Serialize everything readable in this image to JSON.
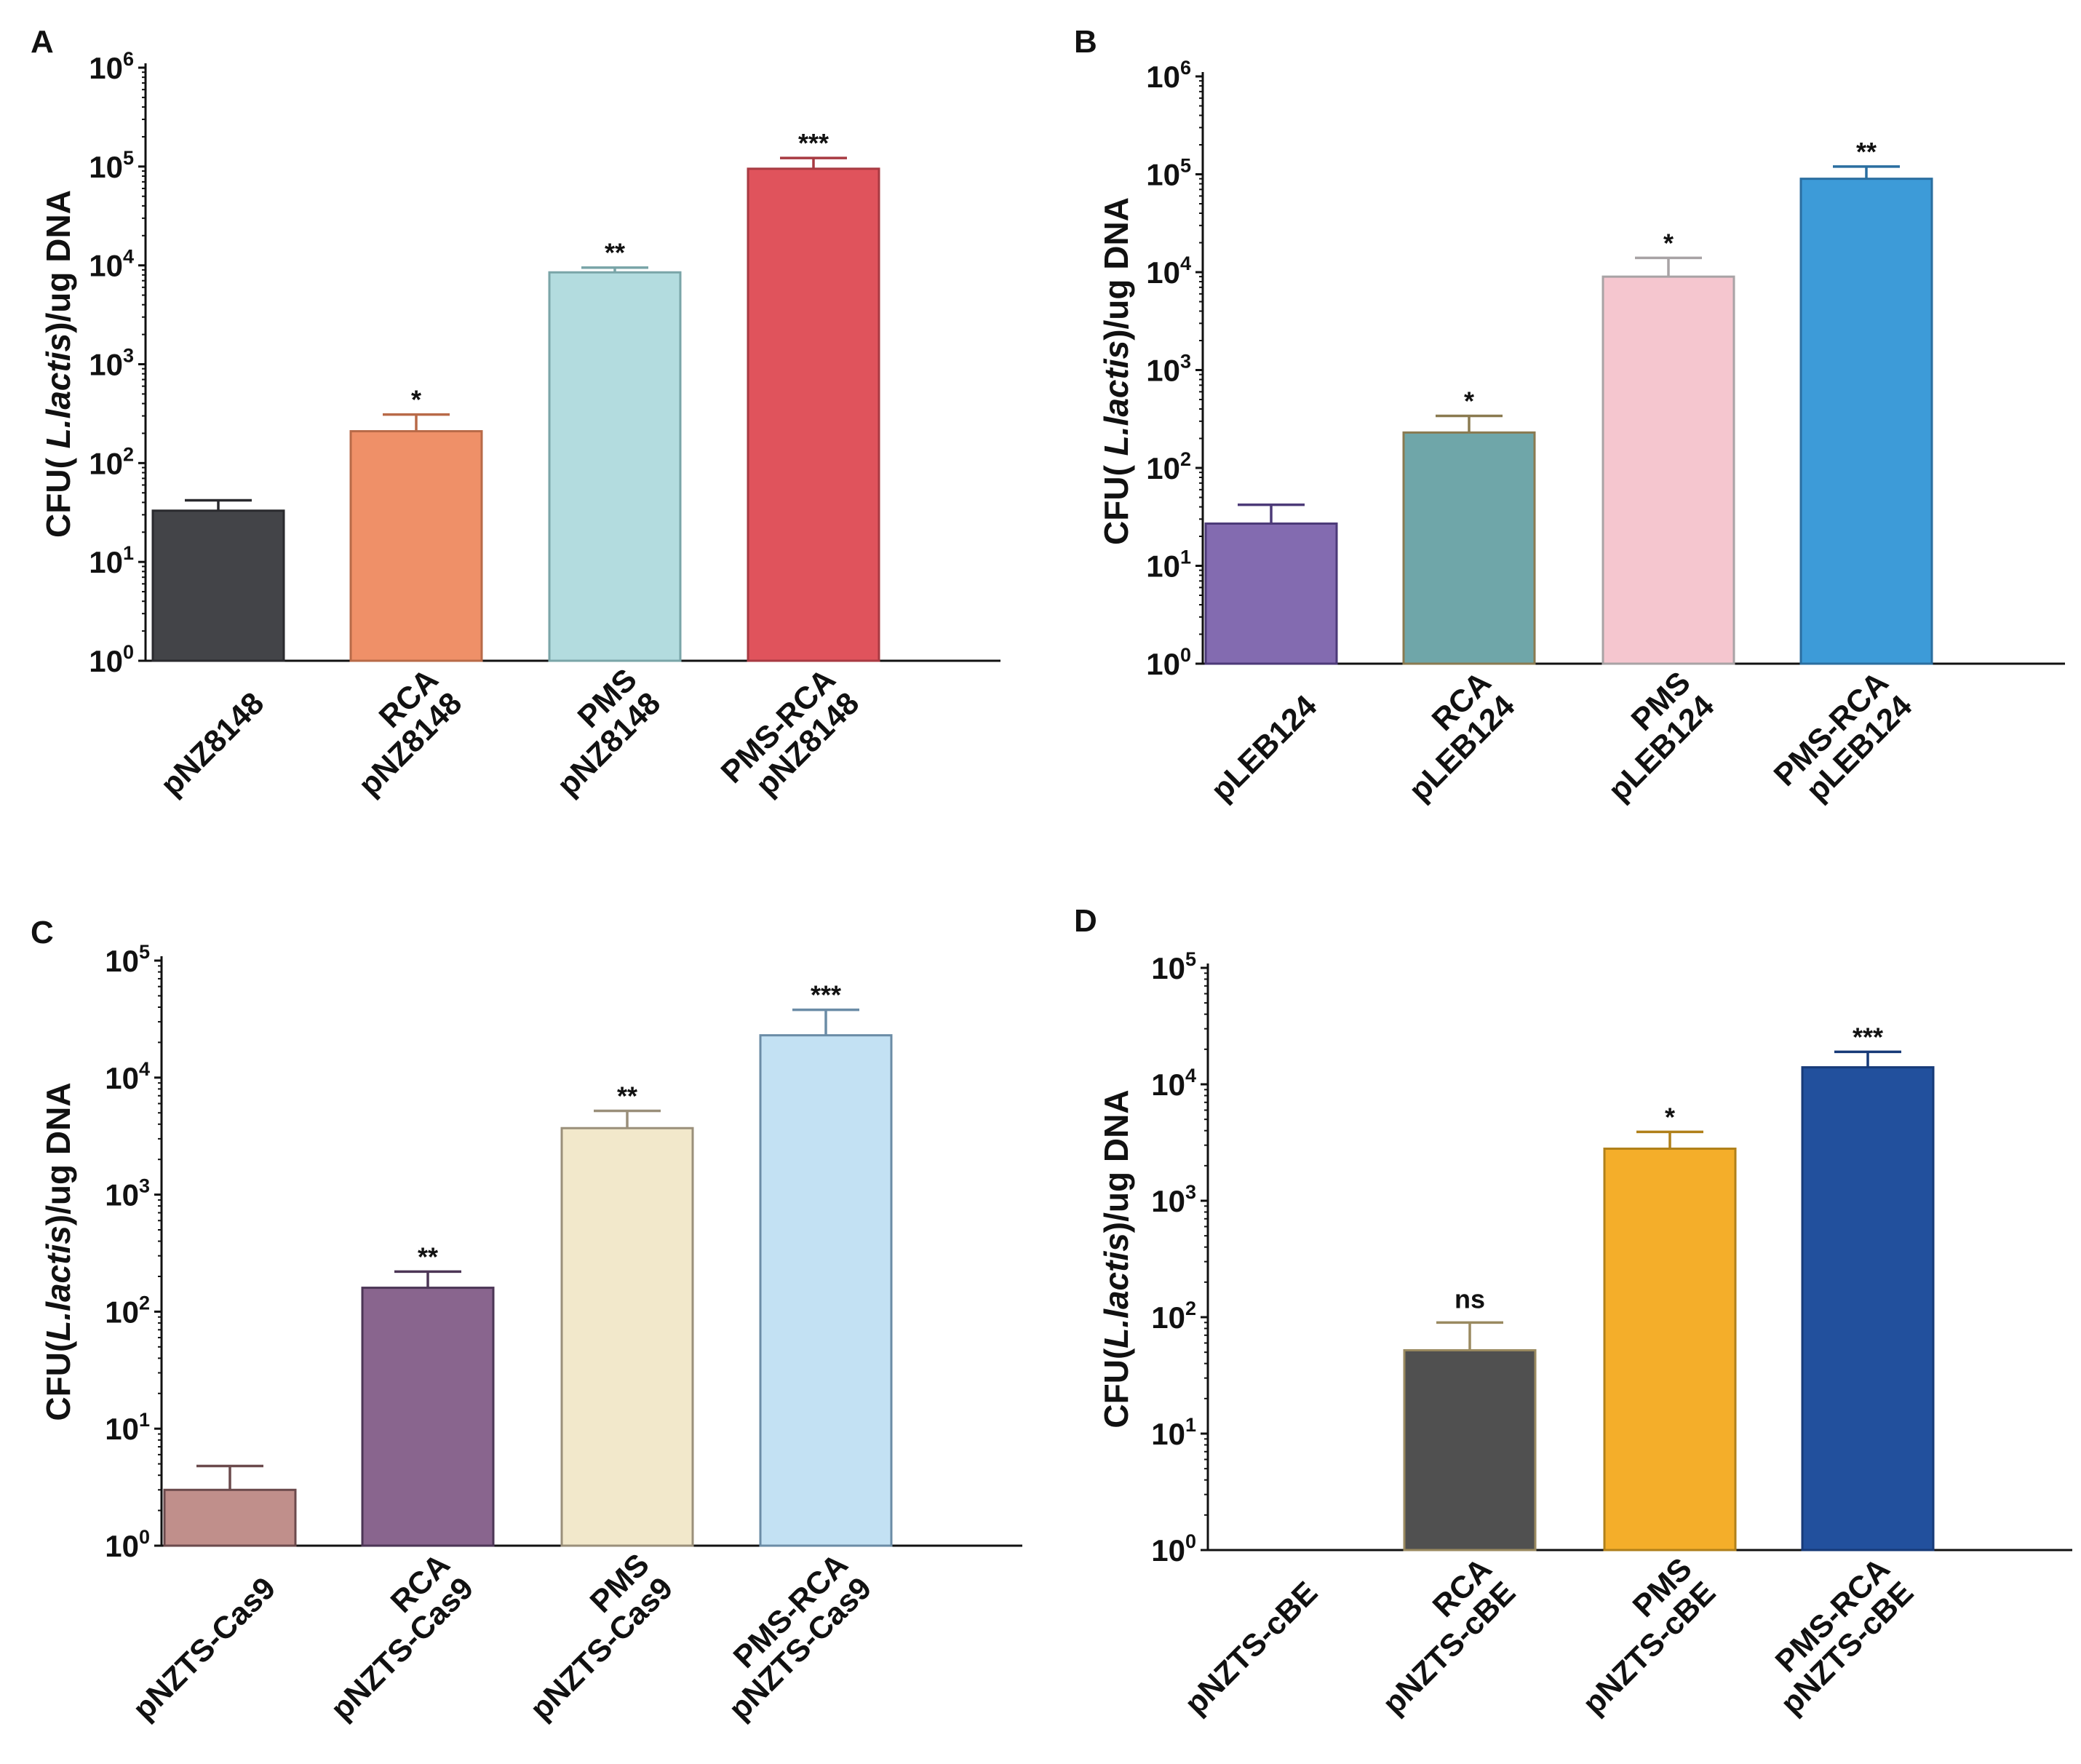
{
  "chart_data": [
    {
      "panel": "A",
      "type": "bar",
      "ylabel": {
        "pre": "CFU( ",
        "italic": "L.lactis",
        "post": ")/ug DNA"
      },
      "yscale": "log",
      "ylim": [
        1,
        1000000
      ],
      "ytick_exponents": [
        0,
        1,
        2,
        3,
        4,
        5,
        6
      ],
      "grid": false,
      "categories": [
        [
          "pNZ8148"
        ],
        [
          "RCA",
          "pNZ8148"
        ],
        [
          "PMS",
          "pNZ8148"
        ],
        [
          "PMS-RCA",
          "pNZ8148"
        ]
      ],
      "values": [
        33,
        210,
        8500,
        95000
      ],
      "error_upper": [
        42,
        310,
        9500,
        122000
      ],
      "significance": [
        "",
        "*",
        "**",
        "***"
      ],
      "colors": [
        "#434448",
        "#ef9068",
        "#b3dcdf",
        "#e0535c"
      ],
      "edge_colors": [
        "#2a2a2e",
        "#b86a48",
        "#7aa5a8",
        "#a83a42"
      ]
    },
    {
      "panel": "B",
      "type": "bar",
      "ylabel": {
        "pre": "CFU( ",
        "italic": "L.lactis",
        "post": ")/ug DNA"
      },
      "yscale": "log",
      "ylim": [
        1,
        1000000
      ],
      "ytick_exponents": [
        0,
        1,
        2,
        3,
        4,
        5,
        6
      ],
      "grid": false,
      "categories": [
        [
          "pLEB124"
        ],
        [
          "RCA",
          "pLEB124"
        ],
        [
          "PMS",
          "pLEB124"
        ],
        [
          "PMS-RCA",
          "pLEB124"
        ]
      ],
      "values": [
        27,
        230,
        9000,
        90000
      ],
      "error_upper": [
        42,
        340,
        14000,
        120000
      ],
      "significance": [
        "",
        "*",
        "*",
        "**"
      ],
      "colors": [
        "#836bb0",
        "#6fa6a9",
        "#f5c6cf",
        "#3d9bd8"
      ],
      "edge_colors": [
        "#4c3a78",
        "#8a7a50",
        "#a8a3a5",
        "#2a6ea0"
      ]
    },
    {
      "panel": "C",
      "type": "bar",
      "ylabel": {
        "pre": "CFU(",
        "italic": "L.lactis",
        "post": ")/ug DNA"
      },
      "yscale": "log",
      "ylim": [
        1,
        100000
      ],
      "ytick_exponents": [
        0,
        1,
        2,
        3,
        4,
        5
      ],
      "grid": false,
      "categories": [
        [
          "pNZTS-Cas9"
        ],
        [
          "RCA",
          "pNZTS-Cas9"
        ],
        [
          "PMS",
          "pNZTS-Cas9"
        ],
        [
          "PMS-RCA",
          "pNZTS-Cas9"
        ]
      ],
      "values": [
        3,
        160,
        3700,
        23000
      ],
      "error_upper": [
        4.8,
        220,
        5200,
        38000
      ],
      "significance": [
        "",
        "**",
        "**",
        "***"
      ],
      "colors": [
        "#c08f8b",
        "#89658e",
        "#f2e8cb",
        "#c3e1f3"
      ],
      "edge_colors": [
        "#6b4a4c",
        "#4c3656",
        "#9a8f7a",
        "#6b8ca6"
      ]
    },
    {
      "panel": "D",
      "type": "bar",
      "ylabel": {
        "pre": "CFU(",
        "italic": "L.lactis",
        "post": ")/ug DNA"
      },
      "yscale": "log",
      "ylim": [
        1,
        100000
      ],
      "ytick_exponents": [
        0,
        1,
        2,
        3,
        4,
        5
      ],
      "grid": false,
      "categories": [
        [
          "pNZTS-cBE"
        ],
        [
          "RCA",
          "pNZTS-cBE"
        ],
        [
          "PMS",
          "pNZTS-cBE"
        ],
        [
          "PMS-RCA",
          "pNZTS-cBE"
        ]
      ],
      "values": [
        null,
        52,
        2800,
        14000
      ],
      "error_upper": [
        null,
        90,
        3900,
        19000
      ],
      "significance": [
        "",
        "ns",
        "*",
        "***"
      ],
      "colors": [
        "#ffffff",
        "#505050",
        "#f4ae2a",
        "#22509d"
      ],
      "edge_colors": [
        "#ffffff",
        "#9a8a60",
        "#b0801a",
        "#173a78"
      ]
    }
  ]
}
